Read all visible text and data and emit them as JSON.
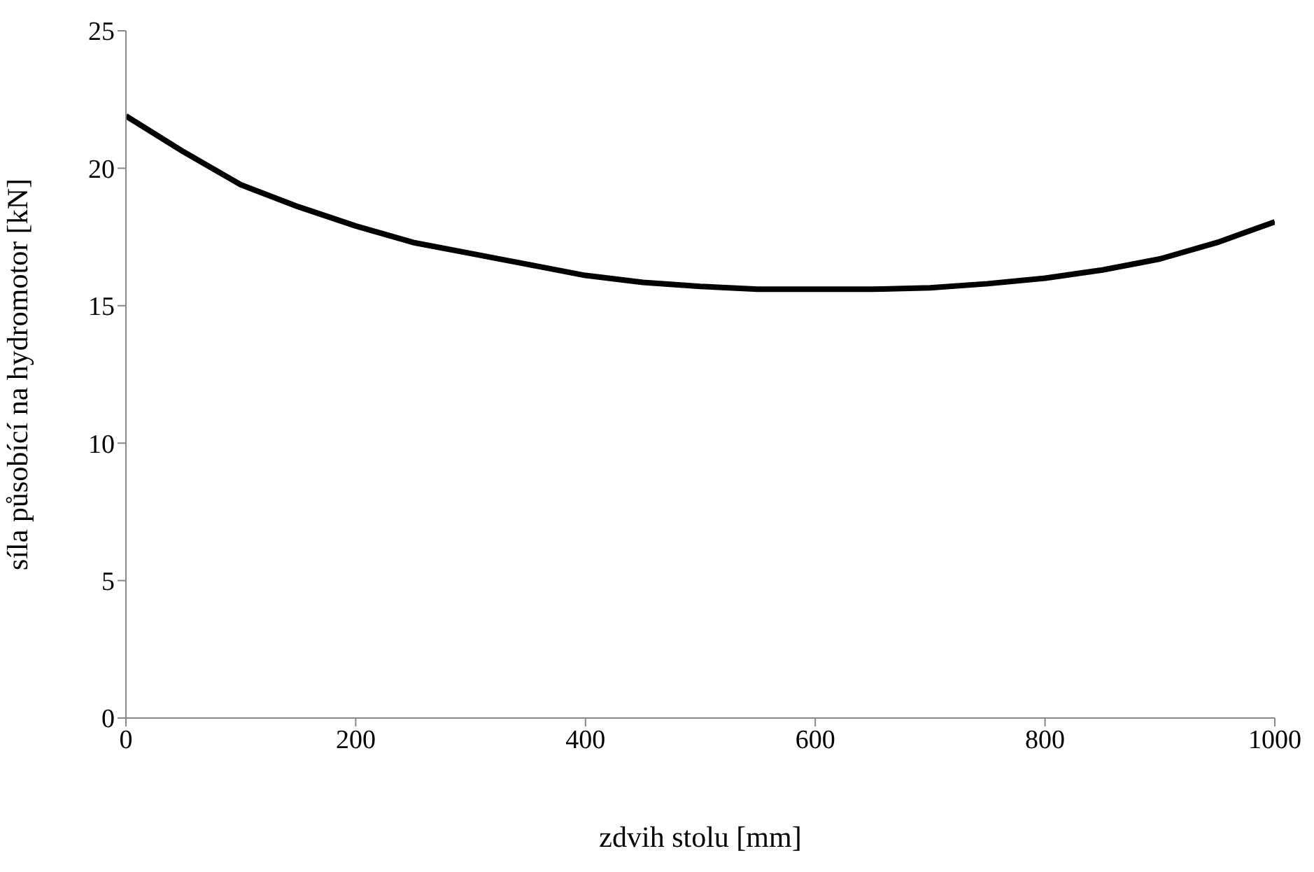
{
  "chart_data": {
    "type": "line",
    "xlabel": "zdvih stolu [mm]",
    "ylabel": "síla působící na hydromotor [kN]",
    "x": [
      0,
      50,
      100,
      150,
      200,
      250,
      300,
      350,
      400,
      450,
      500,
      550,
      600,
      650,
      700,
      750,
      800,
      850,
      900,
      950,
      1000
    ],
    "series": [
      {
        "color": "#000000",
        "values": [
          21.9,
          20.6,
          19.4,
          18.6,
          17.9,
          17.3,
          16.9,
          16.5,
          16.1,
          15.85,
          15.7,
          15.6,
          15.6,
          15.6,
          15.65,
          15.8,
          16.0,
          16.3,
          16.7,
          17.3,
          18.05
        ]
      }
    ],
    "xlim": [
      0,
      1000
    ],
    "xticks": [
      0,
      200,
      400,
      600,
      800,
      1000
    ],
    "ylim": [
      0,
      25
    ],
    "yticks": [
      0,
      5,
      10,
      15,
      20,
      25
    ],
    "grid": false,
    "legend": false,
    "marker": "none",
    "line_style": "solid"
  }
}
